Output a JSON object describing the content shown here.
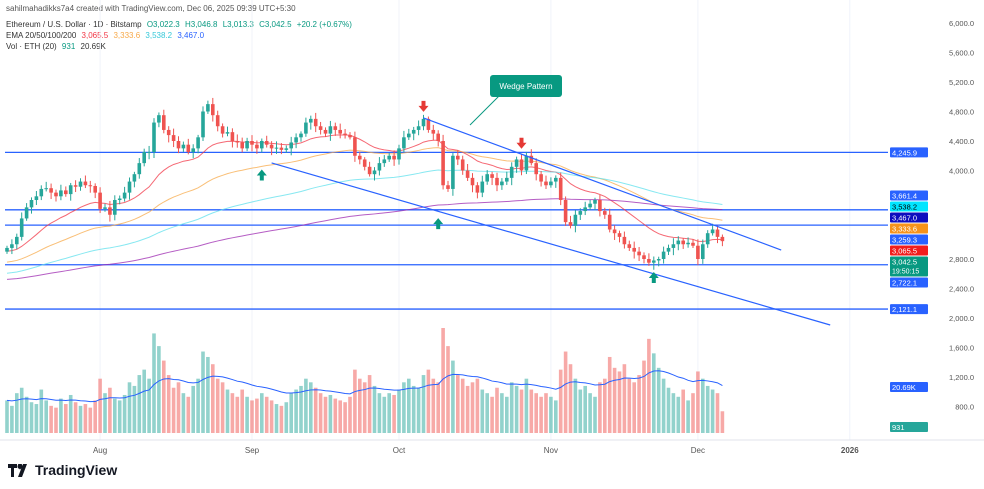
{
  "header": {
    "credit": "sahilmahadikks7a4 created with TradingView.com, Dec 06, 2025 09:39 UTC+5:30",
    "symbol": "Ethereum / U.S. Dollar · 1D · Bitstamp",
    "o": "O3,022.3",
    "h": "H3,046.8",
    "l": "L3,013.3",
    "c": "C3,042.5",
    "chg": "+20.2 (+0.67%)",
    "ema_label": "EMA 20/50/100/200",
    "ema20": "3,065.5",
    "ema50": "3,333.6",
    "ema100": "3,538.2",
    "ema200": "3,467.0",
    "vol_label": "Vol · ETH (20)",
    "vol": "931",
    "vol_ma": "20.69K"
  },
  "brand": "TradingView",
  "colors": {
    "up": "#26a69a",
    "down": "#ef5350",
    "ema20": "#f23645",
    "ema50": "#f7a94a",
    "ema100": "#5fe0ec",
    "ema200": "#9c27b0",
    "level": "#2962ff",
    "wedge": "#2962ff",
    "callout": "#089981"
  },
  "chart_data": {
    "type": "candlestick",
    "start_date": "2025-07-13",
    "close": [
      2950,
      3000,
      3100,
      3350,
      3500,
      3600,
      3650,
      3750,
      3760,
      3700,
      3650,
      3730,
      3680,
      3800,
      3780,
      3850,
      3800,
      3790,
      3700,
      3480,
      3500,
      3400,
      3600,
      3620,
      3700,
      3850,
      3950,
      4100,
      4250,
      4250,
      4650,
      4750,
      4550,
      4480,
      4400,
      4300,
      4350,
      4250,
      4300,
      4450,
      4800,
      4900,
      4750,
      4600,
      4500,
      4520,
      4400,
      4380,
      4300,
      4400,
      4350,
      4300,
      4400,
      4350,
      4300,
      4310,
      4280,
      4300,
      4380,
      4450,
      4500,
      4650,
      4700,
      4600,
      4550,
      4500,
      4600,
      4550,
      4500,
      4480,
      4450,
      4200,
      4150,
      4050,
      3950,
      4000,
      4100,
      4150,
      4200,
      4150,
      4300,
      4450,
      4500,
      4550,
      4600,
      4700,
      4550,
      4500,
      4400,
      3800,
      3750,
      4200,
      4150,
      4000,
      3900,
      3800,
      3700,
      3850,
      3950,
      3900,
      3800,
      3850,
      3900,
      4050,
      4150,
      4000,
      4200,
      4100,
      3950,
      3850,
      3800,
      3850,
      3900,
      3600,
      3300,
      3250,
      3400,
      3450,
      3500,
      3550,
      3600,
      3450,
      3400,
      3200,
      3150,
      3100,
      3000,
      2950,
      2900,
      2850,
      2800,
      2750,
      2780,
      2800,
      2900,
      2950,
      3000,
      3050,
      3000,
      3020,
      2980,
      2800,
      3000,
      3150,
      3200,
      3100,
      3042
    ],
    "volume_k": [
      18,
      15,
      22,
      25,
      20,
      17,
      16,
      24,
      18,
      15,
      14,
      19,
      16,
      21,
      17,
      15,
      16,
      14,
      18,
      30,
      22,
      25,
      19,
      18,
      21,
      28,
      26,
      32,
      35,
      30,
      55,
      48,
      40,
      32,
      25,
      28,
      22,
      20,
      26,
      30,
      45,
      42,
      38,
      30,
      28,
      24,
      22,
      20,
      24,
      20,
      18,
      19,
      22,
      20,
      18,
      16,
      15,
      17,
      22,
      24,
      26,
      30,
      28,
      25,
      22,
      20,
      21,
      19,
      18,
      17,
      20,
      35,
      30,
      28,
      32,
      26,
      22,
      20,
      22,
      21,
      24,
      28,
      30,
      26,
      25,
      32,
      35,
      30,
      28,
      58,
      48,
      40,
      32,
      30,
      26,
      28,
      30,
      24,
      22,
      20,
      25,
      22,
      20,
      28,
      26,
      24,
      30,
      24,
      22,
      20,
      22,
      20,
      18,
      35,
      45,
      38,
      30,
      24,
      26,
      22,
      20,
      28,
      30,
      42,
      36,
      34,
      38,
      30,
      28,
      32,
      40,
      52,
      44,
      36,
      30,
      25,
      22,
      20,
      24,
      18,
      22,
      34,
      30,
      26,
      24,
      22,
      12
    ],
    "price_axis": [
      "6,000.0",
      "5,600.0",
      "5,200.0",
      "4,800.0",
      "4,400.0",
      "4,000.0",
      "2,800.0",
      "2,400.0",
      "2,000.0",
      "1,600.0",
      "1,200.0",
      "800.0"
    ],
    "price_axis_values": [
      6000,
      5600,
      5200,
      4800,
      4400,
      4000,
      2800,
      2400,
      2000,
      1600,
      1200,
      800
    ],
    "ylim": [
      800,
      6000
    ],
    "time_axis": [
      {
        "label": "Aug",
        "date": "2025-08-01"
      },
      {
        "label": "Sep",
        "date": "2025-09-01"
      },
      {
        "label": "Oct",
        "date": "2025-10-01"
      },
      {
        "label": "Nov",
        "date": "2025-11-01"
      },
      {
        "label": "Dec",
        "date": "2025-12-01"
      },
      {
        "label": "2026",
        "date": "2026-01-01"
      }
    ],
    "levels": [
      4245.9,
      3467.0,
      3259.3,
      2722.1,
      2121.1
    ],
    "wedge_upper": [
      {
        "date": "2025-10-06",
        "price": 4712
      },
      {
        "date": "2025-12-18",
        "price": 2922
      }
    ],
    "wedge_lower": [
      {
        "date": "2025-09-05",
        "price": 4102
      },
      {
        "date": "2025-12-28",
        "price": 1905
      }
    ],
    "annotation": "Wedge Pattern",
    "arrows_down": [
      {
        "date": "2025-10-06",
        "price": 4850
      },
      {
        "date": "2025-10-26",
        "price": 4350
      }
    ],
    "arrows_up": [
      {
        "date": "2025-09-03",
        "price": 3960
      },
      {
        "date": "2025-10-09",
        "price": 3300
      },
      {
        "date": "2025-11-22",
        "price": 2570
      }
    ],
    "badges": [
      {
        "text": "4,245.9",
        "price": 4245.9,
        "bg": "#2962ff",
        "fg": "#fff"
      },
      {
        "text": "3,661.4",
        "price": 3661.4,
        "bg": "#2962ff",
        "fg": "#fff"
      },
      {
        "text": "3,538.2",
        "price": 3538.2,
        "bg": "#00e5ff",
        "fg": "#000"
      },
      {
        "text": "3,467.0",
        "price": 3467.0,
        "bg": "#0d0dbf",
        "fg": "#fff"
      },
      {
        "text": "3,333.6",
        "price": 3333.6,
        "bg": "#f7931a",
        "fg": "#fff"
      },
      {
        "text": "3,259.3",
        "price": 3259.3,
        "bg": "#2962ff",
        "fg": "#fff"
      },
      {
        "text": "3,065.5",
        "price": 3065.5,
        "bg": "#f21d1d",
        "fg": "#fff"
      },
      {
        "text": "3,042.5",
        "sub": "19:50:15",
        "price": 3042.5,
        "bg": "#089981",
        "fg": "#fff"
      },
      {
        "text": "2,722.1",
        "price": 2722.1,
        "bg": "#2962ff",
        "fg": "#fff"
      },
      {
        "text": "2,121.1",
        "price": 2121.1,
        "bg": "#2962ff",
        "fg": "#fff"
      },
      {
        "text": "20.69K",
        "vol": true,
        "bg": "#2962ff",
        "fg": "#fff"
      },
      {
        "text": "931",
        "vol": true,
        "bg": "#26a69a",
        "fg": "#fff"
      }
    ]
  }
}
